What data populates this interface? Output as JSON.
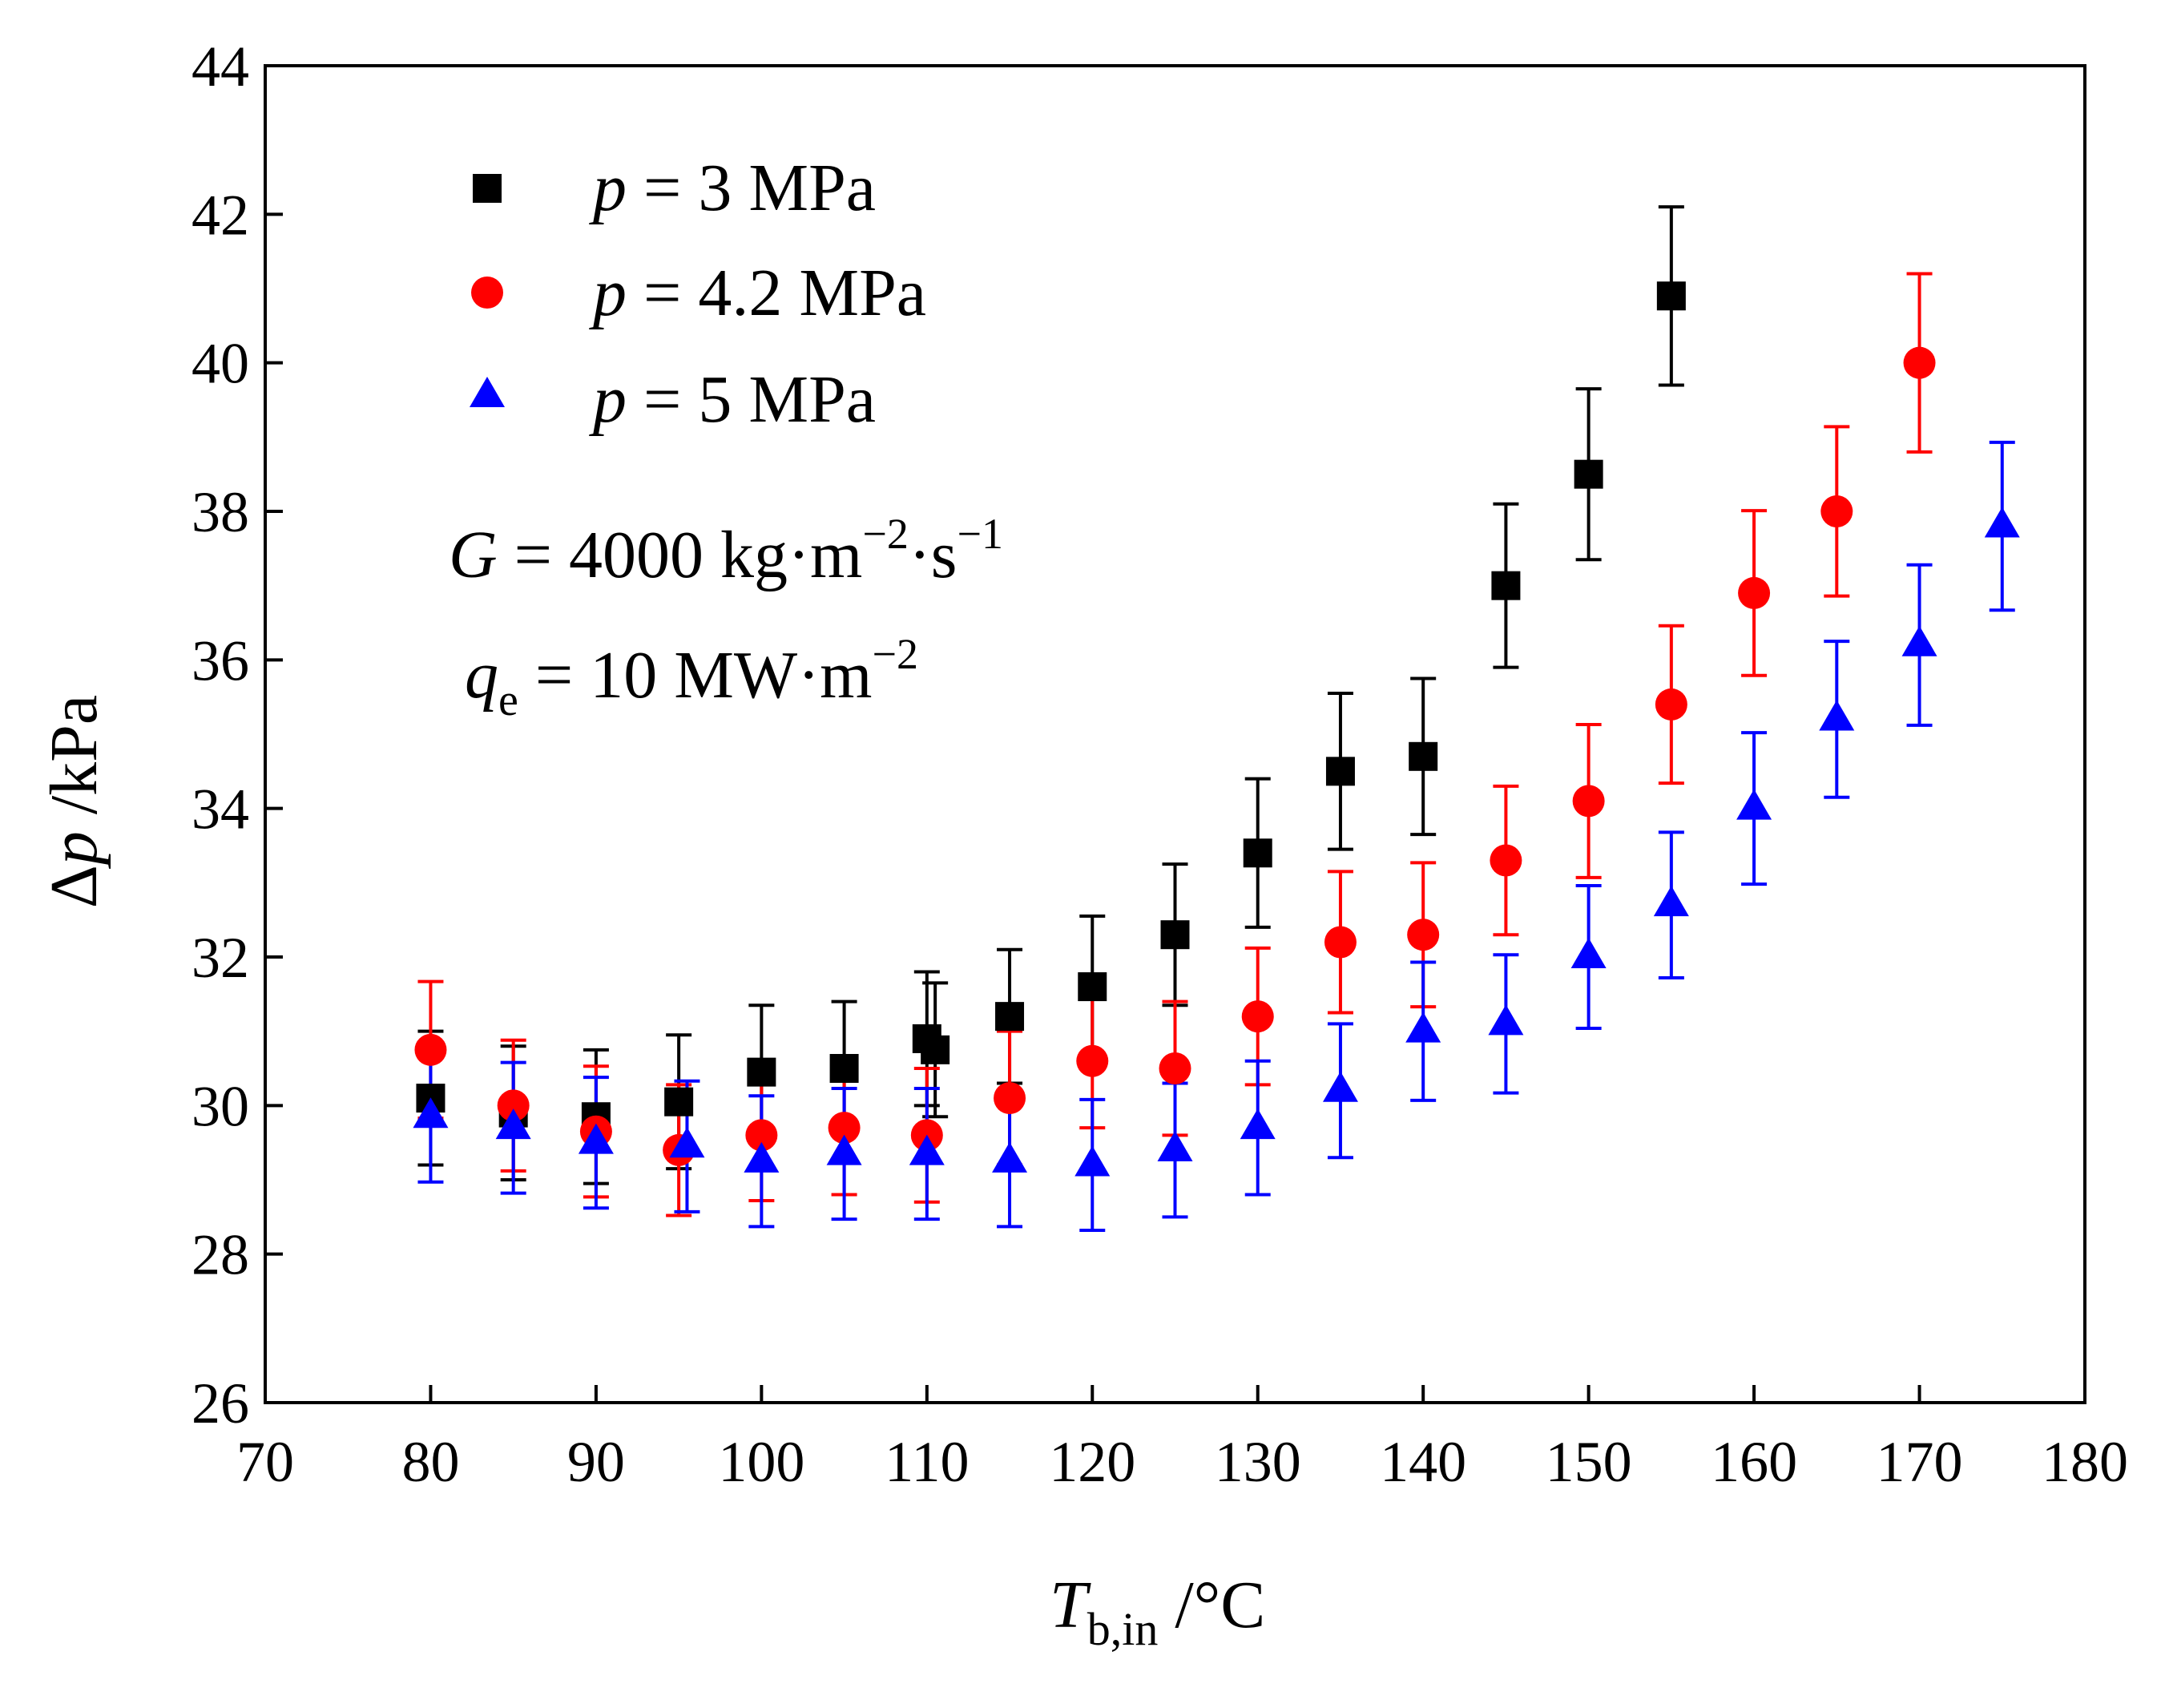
{
  "chart_data": {
    "type": "scatter",
    "title": "",
    "xlabel": {
      "main": "T",
      "sub": "b,in",
      "unit": " /°C"
    },
    "ylabel": {
      "prefix": "Δ",
      "main": "p",
      "unit": " /kPa"
    },
    "xlim": [
      70,
      180
    ],
    "ylim": [
      26,
      44
    ],
    "xticks": [
      70,
      80,
      90,
      100,
      110,
      120,
      130,
      140,
      150,
      160,
      170,
      180
    ],
    "yticks": [
      26,
      28,
      30,
      32,
      34,
      36,
      38,
      40,
      42,
      44
    ],
    "grid": false,
    "legend_position": "top-left",
    "annotations": {
      "mass_flux": {
        "symbol": "G",
        "eq": " = 4000 kg·m",
        "exp1": "−2",
        "mid": "·s",
        "exp2": "−1"
      },
      "heat_flux": {
        "symbol": "q",
        "sub": "e",
        "eq": " = 10 MW·m",
        "exp": "−2"
      }
    },
    "series": [
      {
        "name": "p = 3 MPa",
        "label_symbol": "p",
        "label_rest": " = 3 MPa",
        "marker": "square",
        "color": "#000000",
        "x": [
          80,
          85,
          90,
          95,
          100,
          105,
          110,
          110.5,
          115,
          120,
          125,
          130,
          135,
          140,
          145,
          150,
          155
        ],
        "y": [
          30.1,
          29.9,
          29.85,
          30.05,
          30.45,
          30.5,
          30.9,
          30.75,
          31.2,
          31.6,
          32.3,
          33.4,
          34.5,
          34.7,
          37.0,
          38.5,
          40.9
        ],
        "yerr": [
          0.9,
          0.9,
          0.9,
          0.9,
          0.9,
          0.9,
          0.9,
          0.9,
          0.9,
          0.95,
          0.95,
          1.0,
          1.05,
          1.05,
          1.1,
          1.15,
          1.2
        ]
      },
      {
        "name": "p = 4.2 MPa",
        "label_symbol": "p",
        "label_rest": " = 4.2 MPa",
        "marker": "circle",
        "color": "#ff0000",
        "x": [
          80,
          85,
          90,
          95,
          100,
          105,
          110,
          115,
          120,
          125,
          130,
          135,
          140,
          145,
          150,
          155,
          160,
          165,
          170
        ],
        "y": [
          30.75,
          30.0,
          29.65,
          29.4,
          29.6,
          29.7,
          29.6,
          30.1,
          30.6,
          30.5,
          31.2,
          32.2,
          32.3,
          33.3,
          34.1,
          35.4,
          36.9,
          38.0,
          40.0
        ],
        "yerr": [
          0.92,
          0.88,
          0.88,
          0.88,
          0.88,
          0.9,
          0.9,
          0.9,
          0.9,
          0.9,
          0.92,
          0.95,
          0.97,
          1.0,
          1.03,
          1.06,
          1.11,
          1.14,
          1.2
        ]
      },
      {
        "name": "p = 5 MPa",
        "label_symbol": "p",
        "label_rest": " = 5 MPa",
        "marker": "triangle",
        "color": "#0000ff",
        "x": [
          80,
          85,
          90,
          95.5,
          100,
          105,
          110,
          115,
          120,
          125,
          130,
          135,
          140,
          145,
          150,
          155,
          160,
          165,
          170,
          175
        ],
        "y": [
          29.85,
          29.7,
          29.5,
          29.45,
          29.25,
          29.35,
          29.35,
          29.25,
          29.2,
          29.4,
          29.7,
          30.2,
          31.0,
          31.1,
          32.0,
          32.7,
          34.0,
          35.2,
          36.2,
          37.8
        ],
        "yerr": [
          0.88,
          0.88,
          0.88,
          0.88,
          0.88,
          0.88,
          0.88,
          0.88,
          0.88,
          0.9,
          0.9,
          0.9,
          0.93,
          0.93,
          0.96,
          0.98,
          1.02,
          1.05,
          1.08,
          1.13
        ]
      }
    ]
  }
}
